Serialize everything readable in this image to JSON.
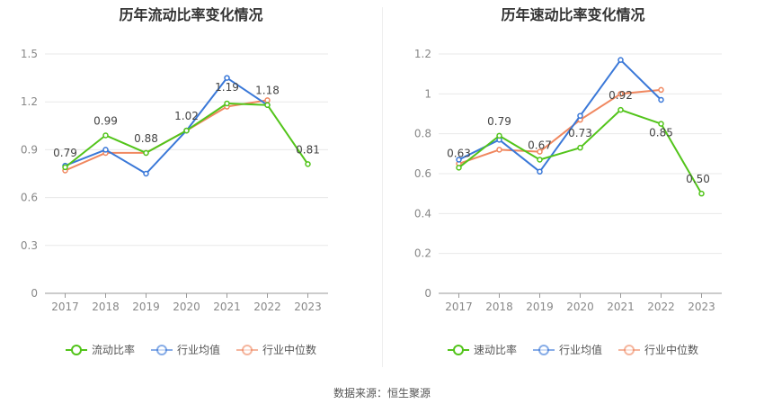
{
  "source_label": "数据来源：恒生聚源",
  "chart_data": [
    {
      "type": "line",
      "title": "历年流动比率变化情况",
      "categories": [
        "2017",
        "2018",
        "2019",
        "2020",
        "2021",
        "2022",
        "2023"
      ],
      "ylim": [
        0,
        1.5
      ],
      "yticks": [
        "0",
        "0.3",
        "0.6",
        "0.9",
        "1.2",
        "1.5"
      ],
      "grid": true,
      "legend_position": "bottom",
      "series": [
        {
          "name": "流动比率",
          "color": "#52c41a",
          "values": [
            0.79,
            0.99,
            0.88,
            1.02,
            1.19,
            1.18,
            0.81
          ],
          "labels": [
            "0.79",
            "0.99",
            "0.88",
            "1.02",
            "1.19",
            "1.18",
            "0.81"
          ]
        },
        {
          "name": "行业均值",
          "color": "#3a78d8",
          "values": [
            0.8,
            0.9,
            0.75,
            1.02,
            1.35,
            1.18,
            null
          ]
        },
        {
          "name": "行业中位数",
          "color": "#f0875f",
          "values": [
            0.77,
            0.88,
            0.88,
            1.02,
            1.17,
            1.21,
            null
          ]
        }
      ]
    },
    {
      "type": "line",
      "title": "历年速动比率变化情况",
      "categories": [
        "2017",
        "2018",
        "2019",
        "2020",
        "2021",
        "2022",
        "2023"
      ],
      "ylim": [
        0,
        1.2
      ],
      "yticks": [
        "0",
        "0.2",
        "0.4",
        "0.6",
        "0.8",
        "1",
        "1.2"
      ],
      "grid": true,
      "legend_position": "bottom",
      "series": [
        {
          "name": "速动比率",
          "color": "#52c41a",
          "values": [
            0.63,
            0.79,
            0.67,
            0.73,
            0.92,
            0.85,
            0.5
          ],
          "labels": [
            "0.63",
            "0.79",
            "0.67",
            "0.73",
            "0.92",
            "0.85",
            "0.50"
          ]
        },
        {
          "name": "行业均值",
          "color": "#3a78d8",
          "values": [
            0.67,
            0.77,
            0.61,
            0.89,
            1.17,
            0.97,
            null
          ]
        },
        {
          "name": "行业中位数",
          "color": "#f0875f",
          "values": [
            0.65,
            0.72,
            0.71,
            0.87,
            1.0,
            1.02,
            null
          ]
        }
      ]
    }
  ]
}
